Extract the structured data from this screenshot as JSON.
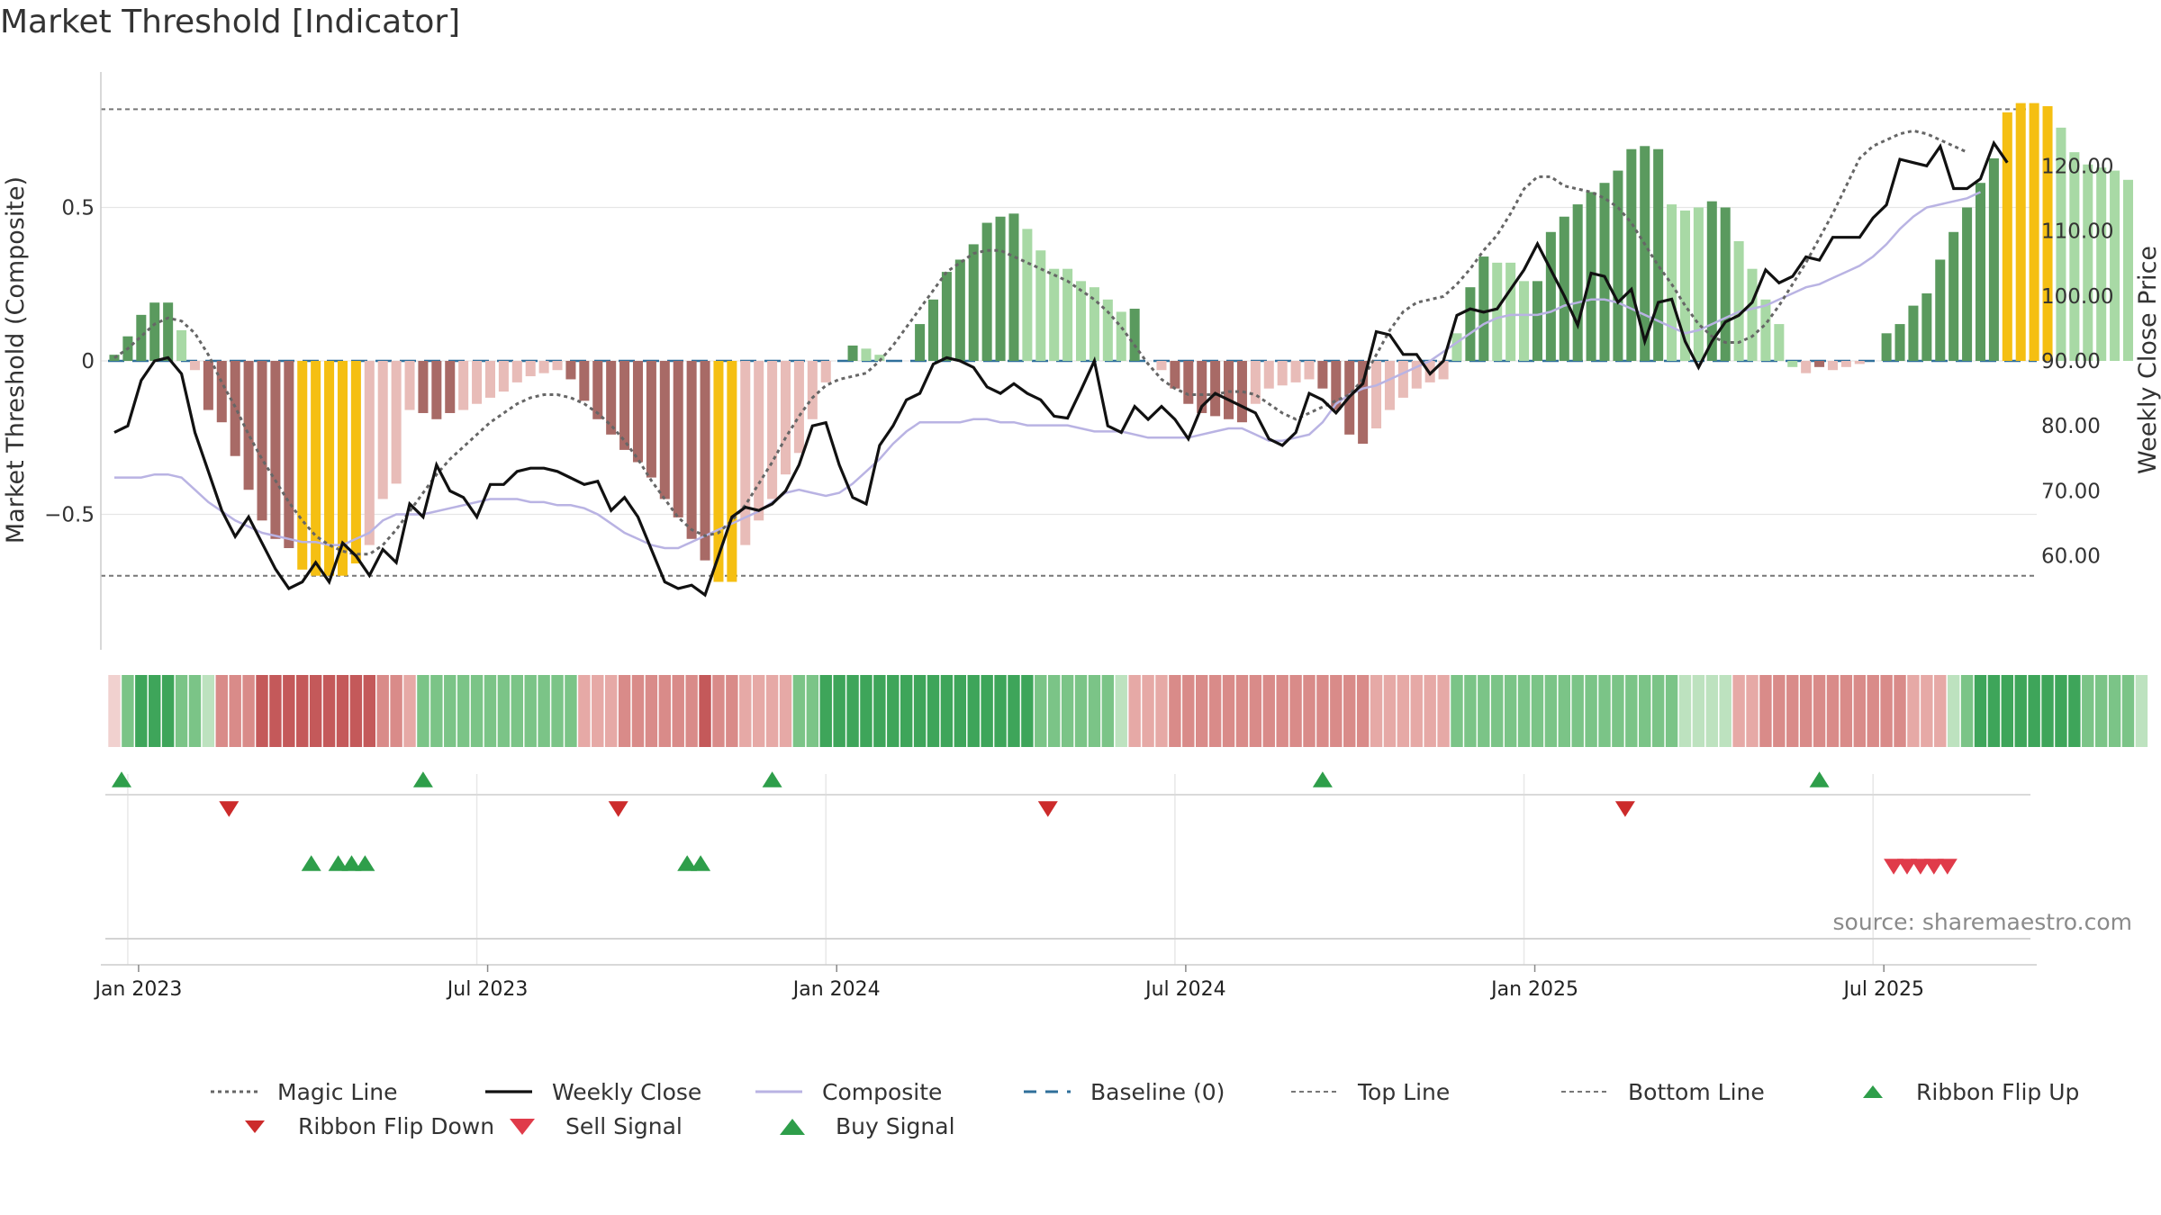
{
  "title": "Market Threshold [Indicator]",
  "source": "source: sharemaestro.com",
  "colors": {
    "green_dark": "#5a9a5e",
    "green_light": "#a8d9a5",
    "red_dark": "#a86a66",
    "red_light": "#e8bcb8",
    "yellow": "#f5bf12",
    "magic": "#666666",
    "weekly": "#111111",
    "composite": "#b9b3e3",
    "baseline": "#2f6f9a",
    "refline": "#777777",
    "flip_up": "#2e9e4a",
    "flip_down": "#cc2b2b",
    "sell": "#e03b4a",
    "buy": "#2e9e4a"
  },
  "chart_data": {
    "type": "bar",
    "title": "Market Threshold [Indicator]",
    "ylabel_left": "Market Threshold (Composite)",
    "ylabel_right": "Weekly Close Price",
    "yticks_left": [
      {
        "v": 0.5,
        "label": "0.5"
      },
      {
        "v": 0.0,
        "label": "0"
      },
      {
        "v": -0.5,
        "label": "−0.5"
      }
    ],
    "ylim_left": [
      -0.93,
      0.95
    ],
    "yticks_right": [
      {
        "v": 120,
        "label": "120.00"
      },
      {
        "v": 110,
        "label": "110.00"
      },
      {
        "v": 100,
        "label": "100.00"
      },
      {
        "v": 90,
        "label": "90.00"
      },
      {
        "v": 80,
        "label": "80.00"
      },
      {
        "v": 70,
        "label": "70.00"
      },
      {
        "v": 60,
        "label": "60.00"
      }
    ],
    "price_at_zero": 90,
    "price_per_unit": 47.2,
    "top_line": 0.82,
    "bottom_line": -0.7,
    "xticks": [
      {
        "week": 1,
        "label": "Jan 2023"
      },
      {
        "week": 27,
        "label": "Jul 2023"
      },
      {
        "week": 53,
        "label": "Jan 2024"
      },
      {
        "week": 79,
        "label": "Jul 2024"
      },
      {
        "week": 105,
        "label": "Jan 2025"
      },
      {
        "week": 131,
        "label": "Jul 2025"
      }
    ],
    "weeks": 143,
    "histogram": [
      0.02,
      0.08,
      0.15,
      0.19,
      0.19,
      0.1,
      -0.03,
      -0.16,
      -0.2,
      -0.31,
      -0.42,
      -0.52,
      -0.58,
      -0.61,
      -0.68,
      -0.7,
      -0.7,
      -0.7,
      -0.66,
      -0.6,
      -0.45,
      -0.4,
      -0.16,
      -0.17,
      -0.19,
      -0.17,
      -0.16,
      -0.14,
      -0.12,
      -0.1,
      -0.07,
      -0.05,
      -0.04,
      -0.03,
      -0.06,
      -0.13,
      -0.19,
      -0.24,
      -0.29,
      -0.33,
      -0.38,
      -0.45,
      -0.51,
      -0.58,
      -0.65,
      -0.72,
      -0.72,
      -0.6,
      -0.52,
      -0.45,
      -0.37,
      -0.3,
      -0.19,
      -0.07,
      0,
      0.05,
      0.04,
      0.02,
      0,
      0,
      0.12,
      0.2,
      0.29,
      0.33,
      0.38,
      0.45,
      0.47,
      0.48,
      0.43,
      0.36,
      0.3,
      0.3,
      0.26,
      0.24,
      0.2,
      0.16,
      0.17,
      0,
      -0.03,
      -0.09,
      -0.14,
      -0.17,
      -0.18,
      -0.19,
      -0.2,
      -0.14,
      -0.09,
      -0.08,
      -0.07,
      -0.06,
      -0.09,
      -0.16,
      -0.24,
      -0.27,
      -0.22,
      -0.16,
      -0.12,
      -0.09,
      -0.07,
      -0.06,
      0.09,
      0.24,
      0.34,
      0.32,
      0.32,
      0.26,
      0.26,
      0.42,
      0.47,
      0.51,
      0.55,
      0.58,
      0.62,
      0.69,
      0.7,
      0.69,
      0.51,
      0.49,
      0.5,
      0.52,
      0.5,
      0.39,
      0.3,
      0.2,
      0.12,
      -0.02,
      -0.04,
      -0.02,
      -0.03,
      -0.02,
      -0.01,
      0,
      0.09,
      0.12,
      0.18,
      0.22,
      0.33,
      0.42,
      0.5,
      0.58,
      0.66,
      0.81,
      0.84,
      0.84,
      0.83,
      0.76
    ],
    "histogram_tail": [
      0.68,
      0.64,
      0.63,
      0.62,
      0.59
    ],
    "histogram_shade": [
      "dg",
      "dg",
      "dg",
      "dg",
      "dg",
      "lg",
      "lr",
      "dr",
      "dr",
      "dr",
      "dr",
      "dr",
      "dr",
      "dr",
      "y",
      "y",
      "y",
      "y",
      "y",
      "lr",
      "lr",
      "lr",
      "lr",
      "dr",
      "dr",
      "dr",
      "lr",
      "lr",
      "lr",
      "lr",
      "lr",
      "lr",
      "lr",
      "lr",
      "dr",
      "dr",
      "dr",
      "dr",
      "dr",
      "dr",
      "dr",
      "dr",
      "dr",
      "dr",
      "dr",
      "y",
      "y",
      "lr",
      "lr",
      "lr",
      "lr",
      "lr",
      "lr",
      "lr",
      "lr",
      "dg",
      "lg",
      "lg",
      "lg",
      "lg",
      "dg",
      "dg",
      "dg",
      "dg",
      "dg",
      "dg",
      "dg",
      "dg",
      "lg",
      "lg",
      "lg",
      "lg",
      "lg",
      "lg",
      "lg",
      "lg",
      "dg",
      "lr",
      "lr",
      "dr",
      "dr",
      "dr",
      "dr",
      "dr",
      "dr",
      "lr",
      "lr",
      "lr",
      "lr",
      "lr",
      "dr",
      "dr",
      "dr",
      "dr",
      "lr",
      "lr",
      "lr",
      "lr",
      "lr",
      "lr",
      "lg",
      "dg",
      "dg",
      "lg",
      "lg",
      "lg",
      "dg",
      "dg",
      "dg",
      "dg",
      "dg",
      "dg",
      "dg",
      "dg",
      "dg",
      "dg",
      "lg",
      "lg",
      "lg",
      "dg",
      "dg",
      "lg",
      "lg",
      "lg",
      "lg",
      "lg",
      "lr",
      "dr",
      "lr",
      "lr",
      "lr",
      "lr",
      "dg",
      "dg",
      "dg",
      "dg",
      "dg",
      "dg",
      "dg",
      "dg",
      "dg",
      "y",
      "y",
      "y",
      "y",
      "lg",
      "lg",
      "lg",
      "lg",
      "lg",
      "lg"
    ],
    "weekly_close": [
      79,
      80,
      87,
      90,
      90.5,
      88,
      79,
      73,
      67,
      63,
      66,
      62,
      58,
      55,
      56,
      59,
      56,
      62,
      60,
      57,
      61,
      59,
      68,
      66,
      74,
      70,
      69,
      66,
      71,
      71,
      73,
      73.5,
      73.5,
      73,
      72,
      71,
      71.5,
      67,
      69,
      66,
      61,
      56,
      55,
      55.5,
      54,
      60,
      66,
      67.5,
      67,
      68,
      70,
      74,
      80,
      80.5,
      74,
      69,
      68,
      77,
      80,
      84,
      85,
      89.5,
      90.5,
      90,
      89,
      86,
      85,
      86.5,
      85,
      84,
      81.5,
      81.2,
      85.5,
      90,
      80,
      79,
      83,
      81,
      83,
      81,
      78,
      83,
      85,
      84,
      83,
      82,
      78,
      77,
      79,
      85,
      84,
      82,
      84.5,
      86.5,
      94.5,
      94,
      91,
      91,
      88,
      90,
      97,
      98,
      97.5,
      98,
      101,
      104,
      108,
      104,
      100,
      95.5,
      103.5,
      103,
      99,
      101,
      93,
      99,
      99.5,
      93,
      89,
      93,
      96,
      97,
      99,
      104,
      102,
      103,
      106,
      105.5,
      109,
      109,
      109,
      112,
      114,
      121,
      120.5,
      120,
      123,
      116.5,
      116.5,
      118,
      123.5,
      120.5
    ],
    "composite": [
      -0.38,
      -0.38,
      -0.38,
      -0.37,
      -0.37,
      -0.38,
      -0.42,
      -0.46,
      -0.49,
      -0.52,
      -0.54,
      -0.56,
      -0.57,
      -0.58,
      -0.59,
      -0.59,
      -0.6,
      -0.6,
      -0.58,
      -0.56,
      -0.52,
      -0.5,
      -0.5,
      -0.5,
      -0.49,
      -0.48,
      -0.47,
      -0.46,
      -0.45,
      -0.45,
      -0.45,
      -0.46,
      -0.46,
      -0.47,
      -0.47,
      -0.48,
      -0.5,
      -0.53,
      -0.56,
      -0.58,
      -0.6,
      -0.61,
      -0.61,
      -0.59,
      -0.57,
      -0.55,
      -0.53,
      -0.51,
      -0.49,
      -0.46,
      -0.43,
      -0.42,
      -0.43,
      -0.44,
      -0.43,
      -0.4,
      -0.36,
      -0.32,
      -0.27,
      -0.23,
      -0.2,
      -0.2,
      -0.2,
      -0.2,
      -0.19,
      -0.19,
      -0.2,
      -0.2,
      -0.21,
      -0.21,
      -0.21,
      -0.21,
      -0.22,
      -0.23,
      -0.23,
      -0.23,
      -0.24,
      -0.25,
      -0.25,
      -0.25,
      -0.25,
      -0.24,
      -0.23,
      -0.22,
      -0.22,
      -0.24,
      -0.26,
      -0.26,
      -0.25,
      -0.24,
      -0.2,
      -0.14,
      -0.11,
      -0.09,
      -0.08,
      -0.06,
      -0.04,
      -0.02,
      0,
      0.03,
      0.06,
      0.09,
      0.12,
      0.14,
      0.15,
      0.15,
      0.15,
      0.16,
      0.18,
      0.19,
      0.2,
      0.2,
      0.19,
      0.17,
      0.15,
      0.13,
      0.11,
      0.09,
      0.1,
      0.12,
      0.14,
      0.16,
      0.17,
      0.18,
      0.2,
      0.22,
      0.24,
      0.25,
      0.27,
      0.29,
      0.31,
      0.34,
      0.38,
      0.43,
      0.47,
      0.5,
      0.51,
      0.52,
      0.53,
      0.55
    ],
    "magic_line": [
      0.01,
      0.04,
      0.08,
      0.12,
      0.14,
      0.13,
      0.09,
      0.02,
      -0.07,
      -0.15,
      -0.24,
      -0.32,
      -0.39,
      -0.46,
      -0.52,
      -0.57,
      -0.6,
      -0.62,
      -0.63,
      -0.63,
      -0.6,
      -0.55,
      -0.49,
      -0.43,
      -0.37,
      -0.32,
      -0.28,
      -0.24,
      -0.2,
      -0.17,
      -0.14,
      -0.12,
      -0.11,
      -0.11,
      -0.12,
      -0.14,
      -0.17,
      -0.21,
      -0.26,
      -0.32,
      -0.39,
      -0.45,
      -0.51,
      -0.55,
      -0.57,
      -0.56,
      -0.52,
      -0.47,
      -0.4,
      -0.33,
      -0.25,
      -0.18,
      -0.12,
      -0.08,
      -0.06,
      -0.05,
      -0.04,
      0,
      0.05,
      0.11,
      0.17,
      0.23,
      0.29,
      0.32,
      0.35,
      0.36,
      0.36,
      0.34,
      0.32,
      0.3,
      0.28,
      0.26,
      0.23,
      0.2,
      0.16,
      0.11,
      0.05,
      -0.01,
      -0.06,
      -0.09,
      -0.11,
      -0.11,
      -0.11,
      -0.1,
      -0.1,
      -0.11,
      -0.14,
      -0.17,
      -0.19,
      -0.17,
      -0.15,
      -0.13,
      -0.11,
      -0.06,
      0.02,
      0.1,
      0.16,
      0.19,
      0.2,
      0.21,
      0.25,
      0.3,
      0.36,
      0.41,
      0.48,
      0.56,
      0.6,
      0.6,
      0.57,
      0.56,
      0.55,
      0.53,
      0.5,
      0.45,
      0.38,
      0.31,
      0.25,
      0.18,
      0.12,
      0.08,
      0.06,
      0.06,
      0.08,
      0.12,
      0.18,
      0.25,
      0.32,
      0.4,
      0.48,
      0.57,
      0.66,
      0.7,
      0.72,
      0.74,
      0.75,
      0.74,
      0.72,
      0.7,
      0.68
    ],
    "ribbon": [
      "lr1",
      "g1",
      "g2",
      "g2",
      "g2",
      "g1",
      "g1",
      "lg",
      "r2",
      "r2",
      "r2",
      "r3",
      "r3",
      "r3",
      "r3",
      "r3",
      "r3",
      "r3",
      "r3",
      "r3",
      "r2",
      "r2",
      "r1",
      "g1",
      "g1",
      "g1",
      "g1",
      "g1",
      "g1",
      "g1",
      "g1",
      "g1",
      "g1",
      "g1",
      "g1",
      "r1",
      "r1",
      "r1",
      "r2",
      "r2",
      "r2",
      "r2",
      "r2",
      "r2",
      "r3",
      "r2",
      "r2",
      "r1",
      "r1",
      "r1",
      "r1",
      "g1",
      "g1",
      "g2",
      "g2",
      "g2",
      "g2",
      "g2",
      "g2",
      "g2",
      "g2",
      "g2",
      "g2",
      "g2",
      "g2",
      "g2",
      "g2",
      "g2",
      "g2",
      "g1",
      "g1",
      "g1",
      "g1",
      "g1",
      "g1",
      "lg",
      "r1",
      "r1",
      "r1",
      "r2",
      "r2",
      "r2",
      "r2",
      "r2",
      "r2",
      "r2",
      "r2",
      "r2",
      "r2",
      "r2",
      "r2",
      "r2",
      "r2",
      "r2",
      "r1",
      "r1",
      "r1",
      "r1",
      "r1",
      "r1",
      "g1",
      "g1",
      "g1",
      "g1",
      "g1",
      "g1",
      "g1",
      "g1",
      "g1",
      "g1",
      "g1",
      "g1",
      "g1",
      "g1",
      "g1",
      "g1",
      "g1",
      "lg",
      "lg",
      "lg",
      "lg",
      "r1",
      "r1",
      "r2",
      "r2",
      "r2",
      "r2",
      "r2",
      "r2",
      "r2",
      "r2",
      "r2",
      "r2",
      "r2",
      "r1",
      "r1",
      "r1",
      "lg",
      "g1",
      "g2",
      "g2",
      "g2",
      "g2",
      "g2",
      "g2",
      "g2",
      "g2",
      "g1",
      "g1",
      "g1",
      "g1",
      "lg"
    ],
    "ribbon_flip_up_weeks": [
      1,
      24,
      50,
      91,
      128
    ],
    "ribbon_flip_down_weeks": [
      9,
      38,
      70,
      113
    ],
    "buy_signal_weeks": [
      15,
      17,
      18,
      19,
      43,
      44
    ],
    "sell_signal_weeks": [
      133,
      134,
      135,
      136,
      137
    ],
    "legend": [
      {
        "label": "Magic Line",
        "style": "magic"
      },
      {
        "label": "Weekly Close",
        "style": "weekly"
      },
      {
        "label": "Composite",
        "style": "composite"
      },
      {
        "label": "Baseline (0)",
        "style": "baseline"
      },
      {
        "label": "Top Line",
        "style": "top"
      },
      {
        "label": "Bottom Line",
        "style": "bottom"
      },
      {
        "label": "Ribbon Flip Up",
        "style": "flipup"
      },
      {
        "label": "Ribbon Flip Down",
        "style": "flipdown"
      },
      {
        "label": "Sell Signal",
        "style": "sell"
      },
      {
        "label": "Buy Signal",
        "style": "buy"
      }
    ]
  }
}
